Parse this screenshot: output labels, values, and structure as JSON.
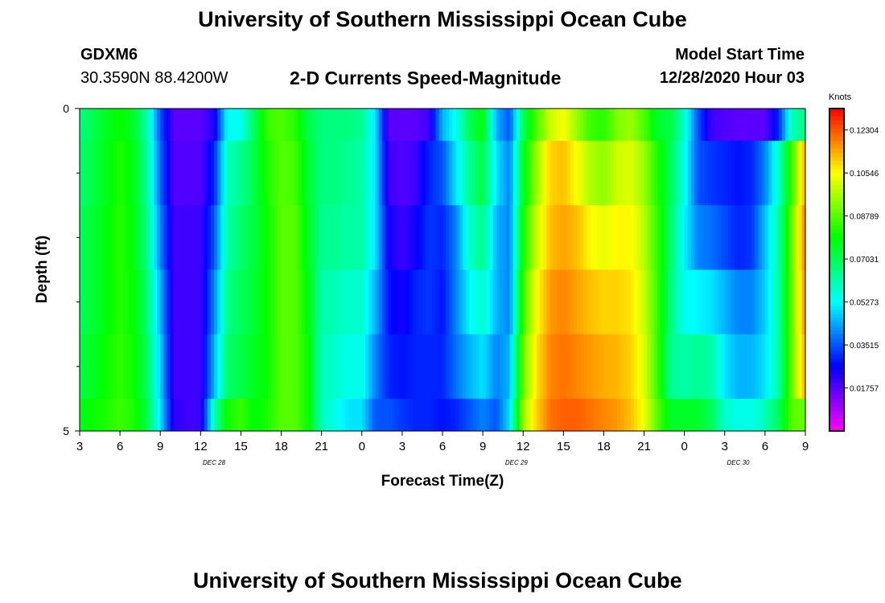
{
  "page": {
    "title": "University of Southern Mississippi Ocean Cube",
    "station_id": "GDXM6",
    "station_coords": "30.3590N 88.4200W",
    "subtitle": "2-D Currents Speed-Magnitude",
    "model_start_label": "Model Start Time",
    "model_start_value": "12/28/2020 Hour 03",
    "footer_title": "University of Southern Mississippi Ocean Cube"
  },
  "chart_data": {
    "type": "heatmap",
    "title": "2-D Currents Speed-Magnitude",
    "xlabel": "Forecast Time(Z)",
    "ylabel": "Depth (ft)",
    "ylim": [
      0,
      5
    ],
    "y_ticks": [
      "0",
      "5"
    ],
    "x_tick_labels": [
      "3",
      "6",
      "9",
      "12",
      "15",
      "18",
      "21",
      "0",
      "3",
      "6",
      "9",
      "12",
      "15",
      "18",
      "21",
      "0",
      "3",
      "6",
      "9"
    ],
    "x_range_hours": [
      0,
      54
    ],
    "date_labels": [
      {
        "text": "DEC 28",
        "hour": 10
      },
      {
        "text": "DEC 29",
        "hour": 32.5
      },
      {
        "text": "DEC 30",
        "hour": 49
      }
    ],
    "colorbar": {
      "unit": "Knots",
      "range": [
        0.0,
        0.1318
      ],
      "tick_labels": [
        "0.12304",
        "0.10546",
        "0.08789",
        "0.07031",
        "0.05273",
        "0.03515",
        "0.01757"
      ],
      "tick_values": [
        0.12304,
        0.10546,
        0.08789,
        0.07031,
        0.05273,
        0.03515,
        0.01757
      ]
    },
    "depth_rows": [
      "0-0.5",
      "0.5-1.5",
      "1.5-2.5",
      "2.5-3.5",
      "3.5-4.5",
      "4.5-5"
    ],
    "time_anchors_hours": [
      0,
      1,
      2,
      3,
      4,
      5,
      6,
      7,
      8,
      9,
      10,
      11,
      12,
      13,
      14,
      15,
      16,
      17,
      18,
      19,
      20,
      21,
      22,
      23,
      24,
      25,
      26,
      27,
      28,
      29,
      30,
      31,
      32,
      33,
      34,
      35,
      36,
      37,
      38,
      39,
      40,
      41,
      42,
      43,
      44,
      45,
      46,
      47,
      48,
      49,
      50,
      51,
      52,
      53,
      54
    ],
    "speed_knots": [
      [
        0.066,
        0.071,
        0.076,
        0.08,
        0.075,
        0.062,
        0.035,
        0.017,
        0.017,
        0.017,
        0.023,
        0.054,
        0.054,
        0.07,
        0.085,
        0.087,
        0.083,
        0.072,
        0.066,
        0.066,
        0.066,
        0.064,
        0.05,
        0.017,
        0.017,
        0.017,
        0.02,
        0.045,
        0.054,
        0.07,
        0.078,
        0.045,
        0.035,
        0.07,
        0.087,
        0.1,
        0.105,
        0.095,
        0.085,
        0.083,
        0.092,
        0.095,
        0.087,
        0.075,
        0.072,
        0.058,
        0.035,
        0.02,
        0.018,
        0.017,
        0.017,
        0.017,
        0.03,
        0.06,
        0.066
      ],
      [
        0.068,
        0.072,
        0.077,
        0.082,
        0.077,
        0.064,
        0.037,
        0.018,
        0.018,
        0.018,
        0.03,
        0.06,
        0.064,
        0.072,
        0.082,
        0.088,
        0.086,
        0.074,
        0.066,
        0.066,
        0.064,
        0.062,
        0.05,
        0.02,
        0.018,
        0.02,
        0.03,
        0.035,
        0.05,
        0.064,
        0.072,
        0.05,
        0.04,
        0.075,
        0.095,
        0.11,
        0.112,
        0.105,
        0.097,
        0.094,
        0.1,
        0.102,
        0.095,
        0.082,
        0.07,
        0.055,
        0.035,
        0.032,
        0.03,
        0.028,
        0.03,
        0.04,
        0.058,
        0.085,
        0.115
      ],
      [
        0.07,
        0.074,
        0.078,
        0.083,
        0.078,
        0.066,
        0.04,
        0.02,
        0.02,
        0.02,
        0.035,
        0.062,
        0.068,
        0.073,
        0.08,
        0.088,
        0.088,
        0.076,
        0.064,
        0.064,
        0.062,
        0.062,
        0.05,
        0.025,
        0.02,
        0.025,
        0.032,
        0.03,
        0.04,
        0.058,
        0.065,
        0.045,
        0.04,
        0.08,
        0.1,
        0.112,
        0.115,
        0.112,
        0.106,
        0.103,
        0.106,
        0.106,
        0.098,
        0.084,
        0.068,
        0.052,
        0.04,
        0.038,
        0.034,
        0.03,
        0.032,
        0.046,
        0.062,
        0.09,
        0.12
      ],
      [
        0.07,
        0.074,
        0.078,
        0.083,
        0.079,
        0.068,
        0.045,
        0.02,
        0.02,
        0.02,
        0.04,
        0.065,
        0.07,
        0.074,
        0.08,
        0.088,
        0.088,
        0.078,
        0.062,
        0.06,
        0.058,
        0.058,
        0.045,
        0.028,
        0.024,
        0.03,
        0.032,
        0.028,
        0.04,
        0.052,
        0.058,
        0.045,
        0.04,
        0.085,
        0.105,
        0.116,
        0.118,
        0.115,
        0.112,
        0.11,
        0.11,
        0.108,
        0.1,
        0.085,
        0.066,
        0.054,
        0.052,
        0.05,
        0.045,
        0.04,
        0.04,
        0.048,
        0.062,
        0.09,
        0.118
      ],
      [
        0.072,
        0.076,
        0.08,
        0.084,
        0.08,
        0.07,
        0.048,
        0.02,
        0.02,
        0.02,
        0.045,
        0.068,
        0.072,
        0.076,
        0.08,
        0.088,
        0.088,
        0.08,
        0.06,
        0.058,
        0.055,
        0.055,
        0.04,
        0.03,
        0.028,
        0.03,
        0.03,
        0.03,
        0.038,
        0.045,
        0.05,
        0.04,
        0.045,
        0.09,
        0.108,
        0.118,
        0.12,
        0.118,
        0.116,
        0.114,
        0.113,
        0.11,
        0.102,
        0.085,
        0.064,
        0.062,
        0.064,
        0.062,
        0.05,
        0.045,
        0.045,
        0.05,
        0.062,
        0.09,
        0.115
      ],
      [
        0.076,
        0.08,
        0.082,
        0.085,
        0.082,
        0.072,
        0.05,
        0.022,
        0.02,
        0.02,
        0.06,
        0.08,
        0.085,
        0.078,
        0.082,
        0.088,
        0.088,
        0.08,
        0.06,
        0.055,
        0.05,
        0.05,
        0.035,
        0.035,
        0.032,
        0.03,
        0.03,
        0.028,
        0.03,
        0.035,
        0.04,
        0.035,
        0.05,
        0.095,
        0.11,
        0.12,
        0.122,
        0.122,
        0.12,
        0.118,
        0.116,
        0.112,
        0.104,
        0.088,
        0.075,
        0.075,
        0.075,
        0.07,
        0.058,
        0.055,
        0.055,
        0.06,
        0.07,
        0.088,
        0.09
      ]
    ]
  }
}
